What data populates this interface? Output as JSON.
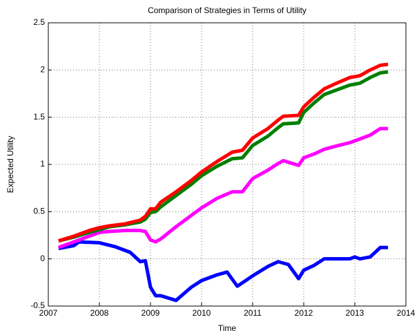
{
  "chart_data": {
    "type": "line",
    "title": "Comparison of Strategies in Terms of Utility",
    "xlabel": "Time",
    "ylabel": "Expected Utility",
    "xlim": [
      2007,
      2014
    ],
    "xticks": [
      2007,
      2008,
      2009,
      2010,
      2011,
      2012,
      2013,
      2014
    ],
    "ylim": [
      -0.5,
      2.5
    ],
    "yticks": [
      -0.5,
      0,
      0.5,
      1,
      1.5,
      2,
      2.5
    ],
    "grid": true,
    "series": [
      {
        "color": "#0000ff",
        "x": [
          2007.2,
          2007.5,
          2007.6,
          2008.0,
          2008.3,
          2008.6,
          2008.8,
          2008.9,
          2009.0,
          2009.1,
          2009.2,
          2009.5,
          2009.8,
          2010.0,
          2010.3,
          2010.5,
          2010.7,
          2011.0,
          2011.3,
          2011.5,
          2011.7,
          2011.9,
          2012.0,
          2012.2,
          2012.4,
          2012.9,
          2013.0,
          2013.1,
          2013.3,
          2013.5,
          2013.65
        ],
        "values": [
          0.11,
          0.14,
          0.18,
          0.17,
          0.13,
          0.07,
          -0.03,
          -0.02,
          -0.3,
          -0.39,
          -0.39,
          -0.44,
          -0.3,
          -0.23,
          -0.17,
          -0.14,
          -0.29,
          -0.18,
          -0.08,
          -0.03,
          -0.06,
          -0.21,
          -0.12,
          -0.07,
          0.0,
          0.0,
          0.02,
          0.0,
          0.02,
          0.12,
          0.12
        ]
      },
      {
        "color": "#ff00ff",
        "x": [
          2007.2,
          2007.5,
          2007.8,
          2008.0,
          2008.2,
          2008.5,
          2008.8,
          2008.9,
          2009.0,
          2009.1,
          2009.2,
          2009.5,
          2009.8,
          2010.0,
          2010.3,
          2010.6,
          2010.8,
          2011.0,
          2011.3,
          2011.5,
          2011.6,
          2011.9,
          2012.0,
          2012.2,
          2012.4,
          2012.6,
          2012.9,
          2013.1,
          2013.3,
          2013.5,
          2013.65
        ],
        "values": [
          0.12,
          0.18,
          0.24,
          0.28,
          0.29,
          0.3,
          0.3,
          0.29,
          0.2,
          0.18,
          0.21,
          0.34,
          0.46,
          0.54,
          0.64,
          0.71,
          0.71,
          0.85,
          0.94,
          1.01,
          1.04,
          0.99,
          1.07,
          1.11,
          1.16,
          1.19,
          1.23,
          1.27,
          1.31,
          1.38,
          1.38
        ]
      },
      {
        "color": "#007f00",
        "x": [
          2007.2,
          2007.5,
          2007.8,
          2008.0,
          2008.2,
          2008.5,
          2008.8,
          2008.9,
          2009.0,
          2009.1,
          2009.2,
          2009.5,
          2009.8,
          2010.0,
          2010.3,
          2010.6,
          2010.8,
          2011.0,
          2011.3,
          2011.5,
          2011.6,
          2011.9,
          2012.0,
          2012.2,
          2012.4,
          2012.6,
          2012.9,
          2013.1,
          2013.3,
          2013.5,
          2013.65
        ],
        "values": [
          0.19,
          0.23,
          0.28,
          0.31,
          0.34,
          0.36,
          0.39,
          0.42,
          0.49,
          0.5,
          0.55,
          0.67,
          0.79,
          0.88,
          0.98,
          1.06,
          1.07,
          1.2,
          1.3,
          1.39,
          1.43,
          1.44,
          1.55,
          1.65,
          1.74,
          1.78,
          1.84,
          1.86,
          1.92,
          1.97,
          1.98
        ]
      },
      {
        "color": "#ff0000",
        "x": [
          2007.2,
          2007.5,
          2007.8,
          2008.0,
          2008.2,
          2008.5,
          2008.8,
          2008.9,
          2009.0,
          2009.1,
          2009.2,
          2009.5,
          2009.8,
          2010.0,
          2010.3,
          2010.6,
          2010.8,
          2011.0,
          2011.3,
          2011.5,
          2011.6,
          2011.9,
          2012.0,
          2012.2,
          2012.4,
          2012.6,
          2012.9,
          2013.1,
          2013.3,
          2013.5,
          2013.65
        ],
        "values": [
          0.19,
          0.24,
          0.3,
          0.33,
          0.35,
          0.37,
          0.41,
          0.45,
          0.53,
          0.53,
          0.6,
          0.71,
          0.83,
          0.92,
          1.03,
          1.13,
          1.15,
          1.28,
          1.38,
          1.47,
          1.51,
          1.52,
          1.61,
          1.71,
          1.8,
          1.85,
          1.92,
          1.94,
          2.0,
          2.05,
          2.06
        ]
      }
    ]
  }
}
